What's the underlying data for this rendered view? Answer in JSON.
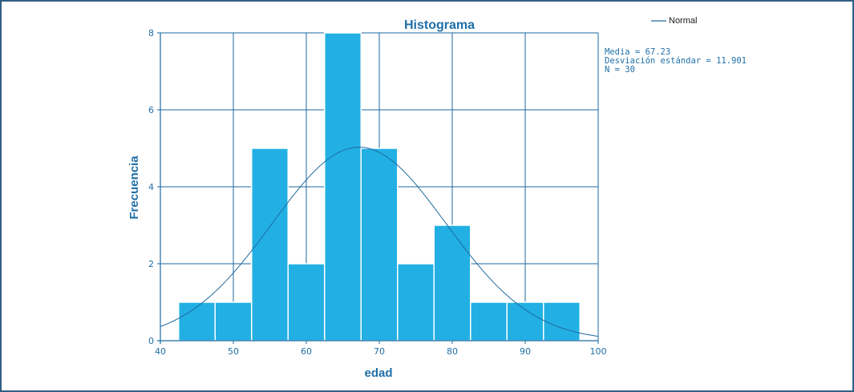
{
  "colors": {
    "bar": "#22b0e4",
    "bar_edge": "#ffffff",
    "grid": "#1e6aa0",
    "text": "#1f6fa6",
    "curve": "#1e6aa0"
  },
  "chart_data": {
    "type": "bar",
    "title": "Histograma",
    "xlabel": "edad",
    "ylabel": "Frecuencia",
    "xlim": [
      40,
      100
    ],
    "ylim": [
      0,
      8
    ],
    "x_ticks": [
      40,
      50,
      60,
      70,
      80,
      90,
      100
    ],
    "y_ticks": [
      0,
      2,
      4,
      6,
      8
    ],
    "bin_width": 5,
    "bins": [
      {
        "start": 42.5,
        "end": 47.5,
        "count": 1
      },
      {
        "start": 47.5,
        "end": 52.5,
        "count": 1
      },
      {
        "start": 52.5,
        "end": 57.5,
        "count": 5
      },
      {
        "start": 57.5,
        "end": 62.5,
        "count": 2
      },
      {
        "start": 62.5,
        "end": 67.5,
        "count": 8
      },
      {
        "start": 67.5,
        "end": 72.5,
        "count": 5
      },
      {
        "start": 72.5,
        "end": 77.5,
        "count": 2
      },
      {
        "start": 77.5,
        "end": 82.5,
        "count": 3
      },
      {
        "start": 82.5,
        "end": 87.5,
        "count": 1
      },
      {
        "start": 87.5,
        "end": 92.5,
        "count": 1
      },
      {
        "start": 92.5,
        "end": 97.5,
        "count": 1
      }
    ],
    "normal_curve": {
      "name": "Normal",
      "mean": 67.23,
      "sd": 11.901,
      "n": 30
    },
    "legend": {
      "entries": [
        "Normal"
      ],
      "position": "top-right"
    },
    "stats": [
      "Media = 67.23",
      "Desviación estándar = 11.901",
      "N = 30"
    ],
    "grid": true
  }
}
